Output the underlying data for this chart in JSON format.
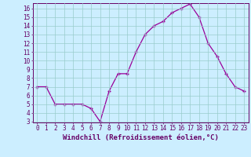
{
  "x": [
    0,
    1,
    2,
    3,
    4,
    5,
    6,
    7,
    8,
    9,
    10,
    11,
    12,
    13,
    14,
    15,
    16,
    17,
    18,
    19,
    20,
    21,
    22,
    23
  ],
  "y": [
    7,
    7,
    5,
    5,
    5,
    5,
    4.5,
    3,
    6.5,
    8.5,
    8.5,
    11,
    13,
    14,
    14.5,
    15.5,
    16,
    16.5,
    15,
    12,
    10.5,
    8.5,
    7,
    6.5
  ],
  "line_color": "#990099",
  "marker_color": "#990099",
  "bg_color": "#cceeff",
  "grid_color": "#99cccc",
  "axis_color": "#660066",
  "xlabel": "Windchill (Refroidissement éolien,°C)",
  "ylim": [
    3,
    16.5
  ],
  "xlim": [
    -0.5,
    23.5
  ],
  "yticks": [
    3,
    4,
    5,
    6,
    7,
    8,
    9,
    10,
    11,
    12,
    13,
    14,
    15,
    16
  ],
  "xticks": [
    0,
    1,
    2,
    3,
    4,
    5,
    6,
    7,
    8,
    9,
    10,
    11,
    12,
    13,
    14,
    15,
    16,
    17,
    18,
    19,
    20,
    21,
    22,
    23
  ],
  "tick_color": "#660066",
  "label_fontsize": 6.5,
  "tick_fontsize": 5.5
}
